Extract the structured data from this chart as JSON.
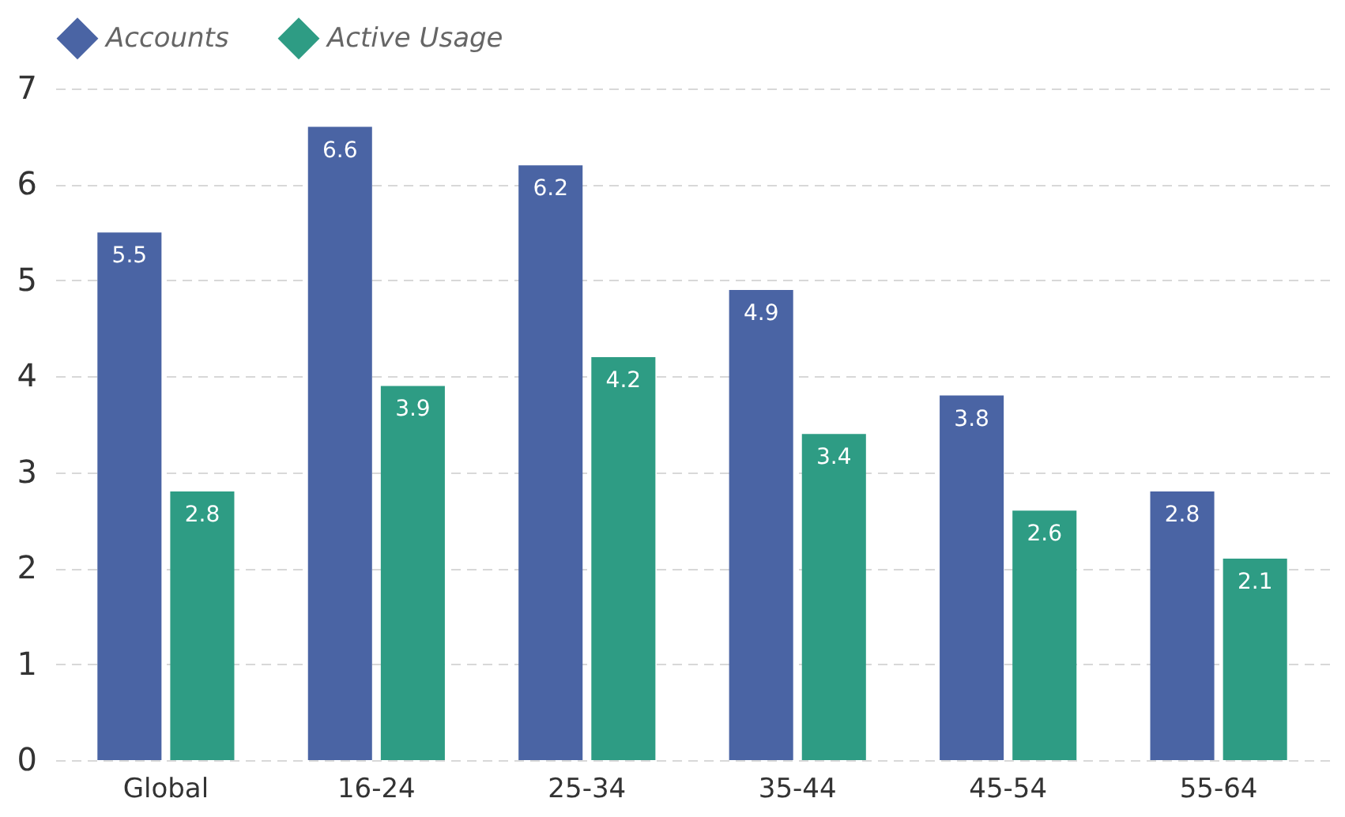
{
  "chart_data": {
    "type": "bar",
    "categories": [
      "Global",
      "16-24",
      "25-34",
      "35-44",
      "45-54",
      "55-64"
    ],
    "series": [
      {
        "name": "Accounts",
        "color": "#4a64a4",
        "values": [
          5.5,
          6.6,
          6.2,
          4.9,
          3.8,
          2.8
        ]
      },
      {
        "name": "Active Usage",
        "color": "#2e9c84",
        "values": [
          2.8,
          3.9,
          4.2,
          3.4,
          2.6,
          2.1
        ]
      }
    ],
    "ylim": [
      0,
      7
    ],
    "yticks": [
      0,
      1,
      2,
      3,
      4,
      5,
      6,
      7
    ],
    "grid": "y",
    "legend": "top",
    "data_labels": true
  }
}
